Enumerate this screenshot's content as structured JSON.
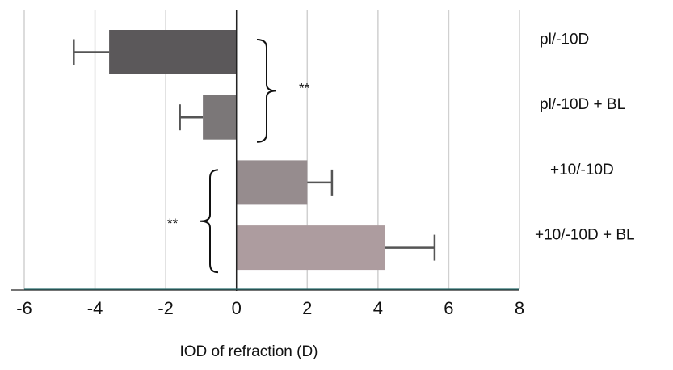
{
  "chart_data": {
    "type": "bar",
    "orientation": "horizontal",
    "title": "",
    "xlabel": "IOD of refraction (D)",
    "ylabel": "",
    "xlim": [
      -6,
      8
    ],
    "xticks": [
      "-6",
      "-4",
      "-2",
      "0",
      "2",
      "4",
      "6",
      "8"
    ],
    "grid": "vertical",
    "categories": [
      "pl/-10D",
      "pl/-10D + BL",
      "+10/-10D",
      "+10/-10D + BL"
    ],
    "values": [
      -3.6,
      -0.95,
      2.0,
      4.2
    ],
    "errors": [
      1.0,
      0.65,
      0.7,
      1.4
    ],
    "colors": [
      "#5b585a",
      "#7b7778",
      "#968c8e",
      "#ad9c9f"
    ],
    "annotations": [
      {
        "label": "**",
        "groups": [
          0,
          1
        ],
        "side": "right"
      },
      {
        "label": "**",
        "groups": [
          2,
          3
        ],
        "side": "left"
      }
    ]
  }
}
